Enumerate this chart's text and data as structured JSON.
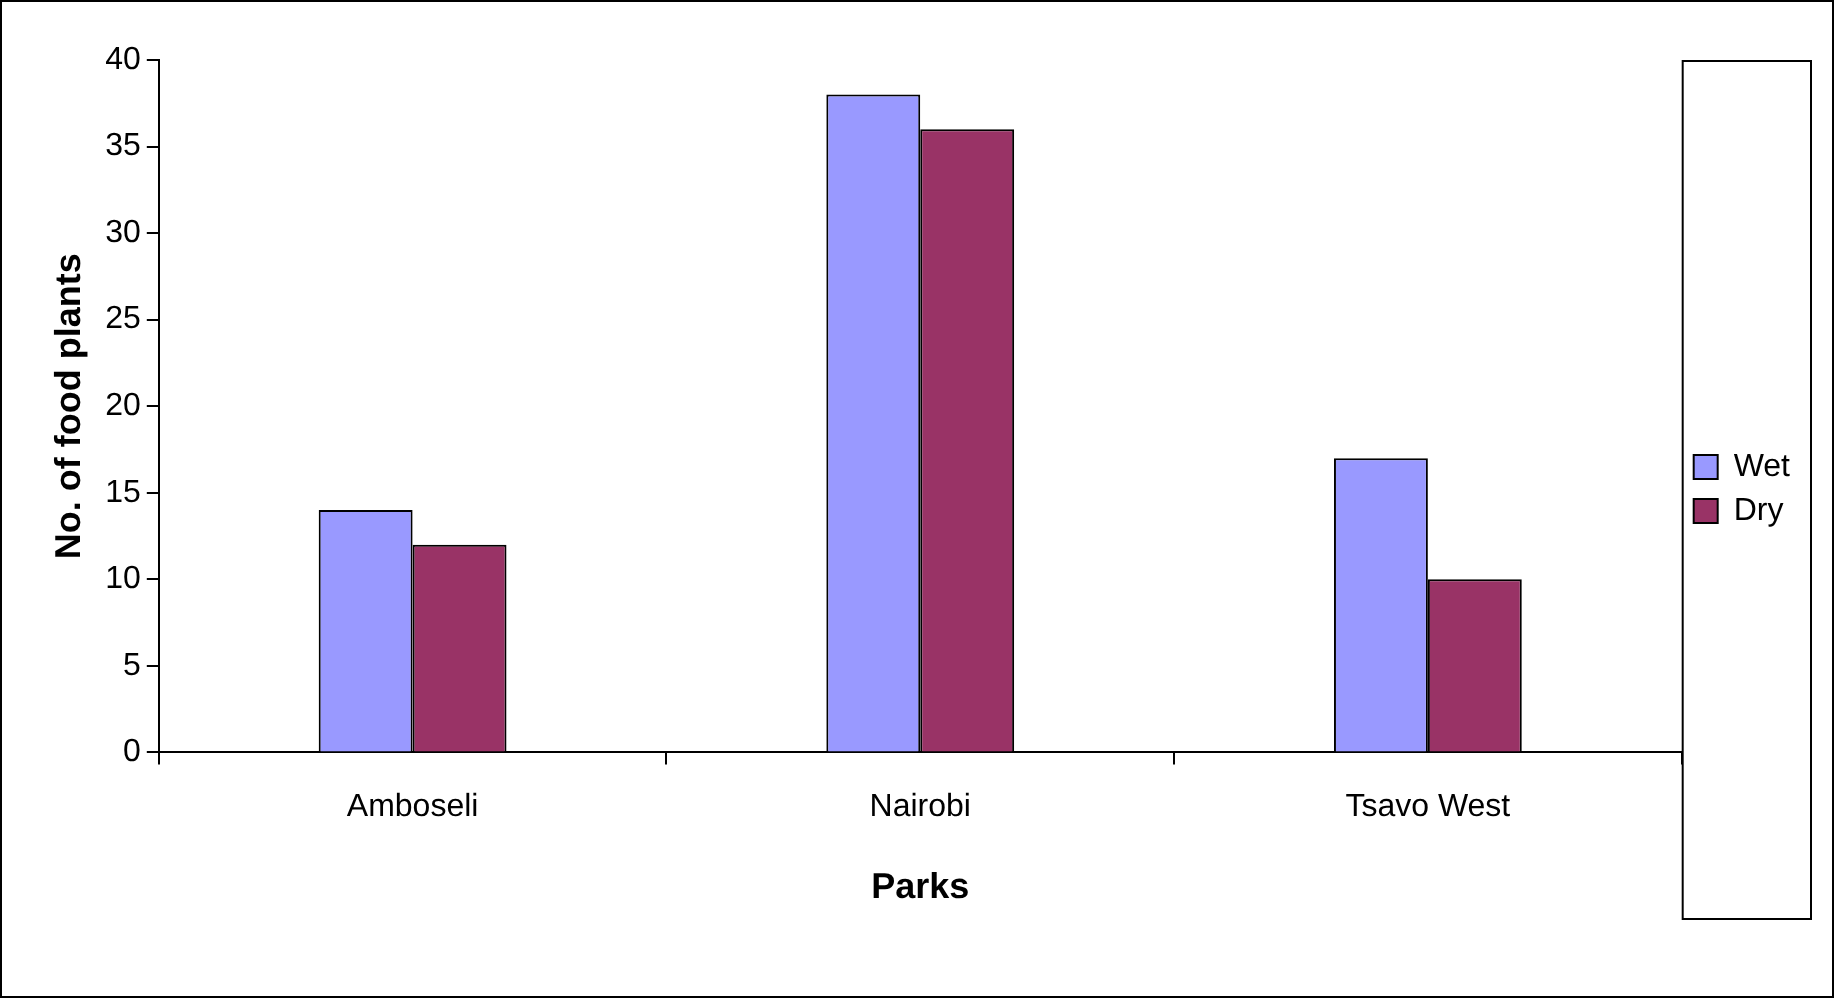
{
  "chart_data": {
    "type": "bar",
    "xlabel": "Parks",
    "ylabel": "No. of food plants",
    "categories": [
      "Amboseli",
      "Nairobi",
      "Tsavo West"
    ],
    "series": [
      {
        "name": "Wet",
        "color": "#9999ff",
        "values": [
          14,
          38,
          17
        ]
      },
      {
        "name": "Dry",
        "color": "#993366",
        "values": [
          12,
          36,
          10
        ]
      }
    ],
    "ylim": [
      0,
      40
    ],
    "yticks": [
      0,
      5,
      10,
      15,
      20,
      25,
      30,
      35,
      40
    ],
    "grid": false,
    "legend": "right"
  }
}
